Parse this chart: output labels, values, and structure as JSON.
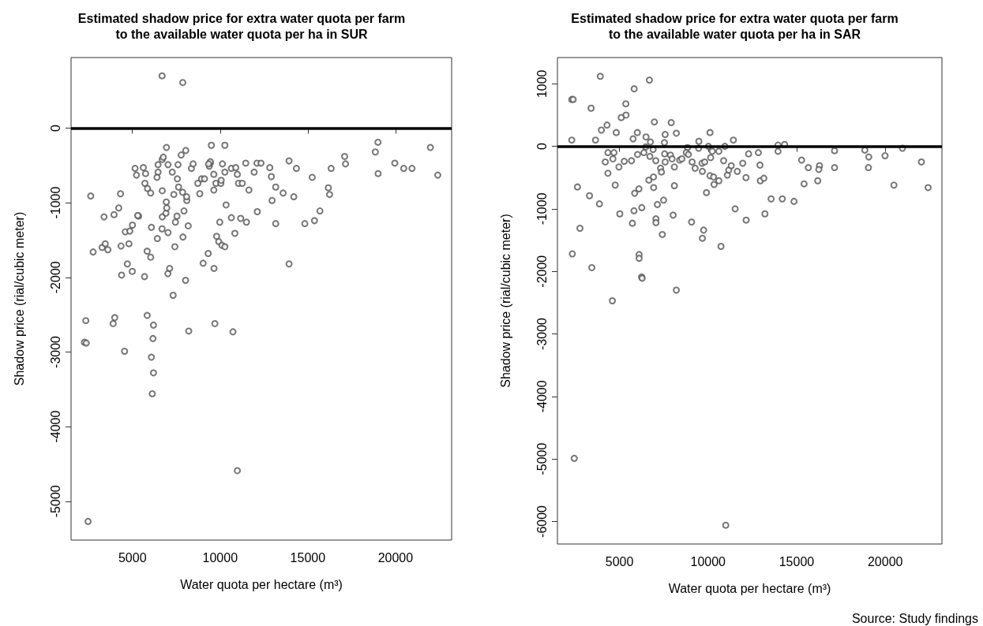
{
  "chart_data": [
    {
      "type": "scatter",
      "title": "Estimated shadow price for extra water quota per farm\nto the available water quota per ha in SUR",
      "xlabel": "Water quota per hectare (m³)",
      "ylabel": "Shadow price (rial/cubic meter)",
      "xlim": [
        1500,
        23200
      ],
      "xticks": [
        5000,
        10000,
        15000,
        20000
      ],
      "ylim": [
        -5520,
        945
      ],
      "yticks": [
        -5000,
        -4000,
        -3000,
        -2000,
        -1000,
        0
      ],
      "grid": false,
      "marker": "circle",
      "ref_lines": [
        {
          "axis": "y",
          "value": 0,
          "color": "#000000",
          "line_style": "solid"
        }
      ],
      "series": [
        {
          "color": "#555555",
          "x": [
            6690,
            7870,
            2620,
            4320,
            3380,
            3950,
            4220,
            5350,
            5300,
            2760,
            3270,
            3450,
            3600,
            4350,
            4800,
            4590,
            4850,
            5000,
            4710,
            4380,
            4990,
            5690,
            5840,
            6040,
            6080,
            6420,
            6690,
            7030,
            6700,
            6910,
            6960,
            6930,
            6700,
            7360,
            7020,
            7120,
            8030,
            7420,
            7450,
            7540,
            7940,
            7880,
            8180,
            8100,
            8090,
            7860,
            7630,
            7560,
            7270,
            7600,
            7030,
            6460,
            6460,
            6400,
            6700,
            6760,
            6940,
            7780,
            8040,
            5150,
            5230,
            5620,
            5750,
            5710,
            5860,
            6040,
            8360,
            8460,
            8730,
            8840,
            8940,
            9110,
            9380,
            9440,
            9440,
            9500,
            9640,
            9640,
            9760,
            10040,
            10060,
            10130,
            10270,
            10270,
            10640,
            10890,
            10980,
            11050,
            11260,
            11460,
            11640,
            10340,
            10640,
            9980,
            10840,
            11170,
            11500,
            9800,
            9920,
            10100,
            10270,
            9320,
            9030,
            9650,
            11940,
            12100,
            12330,
            12120,
            12830,
            12920,
            13170,
            12960,
            13170,
            13590,
            13930,
            14350,
            14200,
            13930,
            14830,
            15380,
            15690,
            15250,
            16170,
            16240,
            16330,
            17100,
            17150,
            19000,
            18850,
            19010,
            19960,
            20470,
            20940,
            21990,
            22410,
            9340,
            7320,
            2340,
            2260,
            2370,
            3900,
            3990,
            5840,
            6200,
            6170,
            4550,
            6080,
            6200,
            6130,
            8210,
            9700,
            10730,
            10980,
            2470
          ],
          "values": [
            700,
            610,
            -910,
            -880,
            -1190,
            -1160,
            -1070,
            -1180,
            -1170,
            -1660,
            -1600,
            -1550,
            -1630,
            -1580,
            -1550,
            -1390,
            -1380,
            -1300,
            -1820,
            -1970,
            -1920,
            -1990,
            -1650,
            -1730,
            -1330,
            -1480,
            -1350,
            -1400,
            -1190,
            -1140,
            -1070,
            -990,
            -840,
            -890,
            -1950,
            -1880,
            -2040,
            -1590,
            -1260,
            -1180,
            -1110,
            -1460,
            -1310,
            -970,
            -920,
            -860,
            -790,
            -680,
            -590,
            -490,
            -490,
            -490,
            -590,
            -660,
            -420,
            -390,
            -260,
            -360,
            -300,
            -540,
            -630,
            -530,
            -610,
            -740,
            -810,
            -870,
            -540,
            -480,
            -740,
            -880,
            -680,
            -680,
            -510,
            -470,
            -450,
            -230,
            -620,
            -830,
            -740,
            -740,
            -700,
            -480,
            -590,
            -230,
            -540,
            -530,
            -620,
            -740,
            -740,
            -470,
            -830,
            -1030,
            -1200,
            -1260,
            -1410,
            -1210,
            -1260,
            -1450,
            -1520,
            -1570,
            -1590,
            -1680,
            -1810,
            -1880,
            -590,
            -470,
            -470,
            -1120,
            -530,
            -650,
            -790,
            -970,
            -1280,
            -870,
            -440,
            -540,
            -920,
            -1820,
            -1280,
            -1240,
            -1110,
            -660,
            -800,
            -890,
            -540,
            -380,
            -480,
            -190,
            -320,
            -610,
            -470,
            -540,
            -540,
            -260,
            -630,
            -480,
            -2240,
            -2580,
            -2870,
            -2880,
            -2620,
            -2540,
            -2510,
            -2640,
            -2820,
            -2990,
            -3070,
            -3280,
            -3560,
            -2720,
            -2620,
            -2730,
            -4590,
            -5270
          ]
        }
      ]
    },
    {
      "type": "scatter",
      "title": "Estimated shadow price for extra water quota per farm\nto the available water quota per ha in SAR",
      "xlabel": "Water quota per hectare (m³)",
      "ylabel": "Shadow price (rial/cubic meter)",
      "xlim": [
        1500,
        23200
      ],
      "xticks": [
        5000,
        10000,
        15000,
        20000
      ],
      "ylim": [
        -6360,
        1420
      ],
      "yticks": [
        -6000,
        -5000,
        -4000,
        -3000,
        -2000,
        -1000,
        0,
        1000
      ],
      "grid": false,
      "marker": "circle",
      "ref_lines": [
        {
          "axis": "y",
          "value": 0,
          "color": "#000000",
          "line_style": "solid"
        }
      ],
      "annotations": [
        "Source: Study findings"
      ],
      "series": [
        {
          "color": "#555555",
          "x": [
            3920,
            6690,
            5830,
            2310,
            2390,
            3400,
            5360,
            5370,
            5100,
            4300,
            3980,
            4820,
            2310,
            3650,
            6010,
            5770,
            6970,
            7920,
            7580,
            8210,
            6500,
            6750,
            7540,
            6480,
            6900,
            6380,
            6720,
            7050,
            6020,
            5680,
            5270,
            4970,
            4350,
            4690,
            4630,
            4200,
            4350,
            2630,
            4760,
            3310,
            3870,
            5020,
            2770,
            2340,
            3440,
            5860,
            6100,
            5820,
            6260,
            5730,
            6110,
            6110,
            6250,
            6280,
            6660,
            6920,
            6930,
            7320,
            7370,
            7550,
            7580,
            7880,
            7970,
            8100,
            8400,
            8520,
            7140,
            7490,
            7060,
            7060,
            7420,
            8030,
            8100,
            8840,
            8770,
            9100,
            9270,
            9480,
            9470,
            9660,
            9680,
            9810,
            10110,
            10020,
            10150,
            10110,
            10310,
            10340,
            10610,
            9910,
            10240,
            10610,
            10950,
            10880,
            11090,
            11170,
            11310,
            11430,
            11650,
            11960,
            12290,
            12840,
            12930,
            12140,
            12950,
            13150,
            9750,
            9680,
            9070,
            10730,
            11530,
            12150,
            13210,
            13560,
            14190,
            14850,
            13950,
            13950,
            14320,
            15280,
            15660,
            15420,
            16290,
            16250,
            16190,
            17140,
            17140,
            18850,
            19070,
            19050,
            19990,
            20970,
            20490,
            22040,
            22420,
            8890,
            4600,
            8210,
            2450,
            11000
          ],
          "values": [
            1120,
            1060,
            920,
            750,
            750,
            610,
            680,
            500,
            460,
            340,
            260,
            220,
            100,
            100,
            220,
            120,
            390,
            380,
            190,
            210,
            150,
            70,
            60,
            -10,
            -50,
            -100,
            -160,
            -230,
            -130,
            -230,
            -240,
            -330,
            -100,
            -100,
            -200,
            -250,
            -430,
            -650,
            -620,
            -790,
            -920,
            -1080,
            -1310,
            -1720,
            -1940,
            -750,
            -680,
            -1030,
            -980,
            -1230,
            -1730,
            -1790,
            -2090,
            -2110,
            -540,
            -490,
            -660,
            -350,
            -410,
            -120,
            -250,
            -140,
            -200,
            -330,
            -220,
            -200,
            -930,
            -860,
            -1160,
            -1220,
            -1410,
            -1100,
            -630,
            -20,
            -100,
            -250,
            -350,
            80,
            -30,
            -270,
            -400,
            -250,
            220,
            0,
            -180,
            -470,
            -490,
            -610,
            -550,
            -740,
            -80,
            -80,
            0,
            -230,
            -460,
            -380,
            -310,
            100,
            -400,
            -270,
            -120,
            -100,
            -300,
            -500,
            -550,
            -510,
            -1340,
            -1470,
            -1210,
            -1600,
            -1000,
            -1180,
            -1080,
            -840,
            -840,
            -880,
            -80,
            20,
            30,
            -220,
            -340,
            -600,
            -310,
            -370,
            -550,
            -70,
            -340,
            -60,
            -170,
            -340,
            -150,
            -30,
            -620,
            -250,
            -660,
            -130,
            -2470,
            -2300,
            -4990,
            -6060
          ]
        }
      ]
    }
  ]
}
